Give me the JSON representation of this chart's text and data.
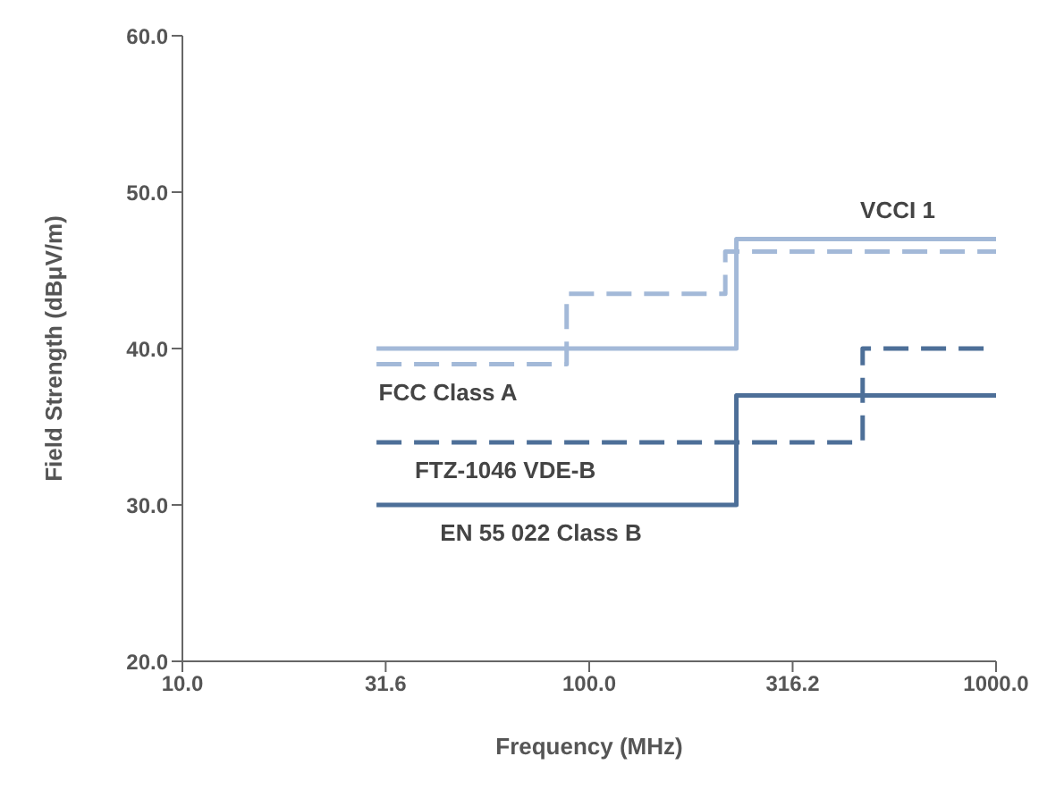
{
  "chart_data": {
    "type": "step",
    "xlabel": "Frequency (MHz)",
    "ylabel": "Field Strength (dBμV/m)",
    "log": "x",
    "marker": "none",
    "xlim": [
      10,
      1000
    ],
    "xticks": [
      {
        "value": 10,
        "label": "10.0"
      },
      {
        "value": 31.6,
        "label": "31.6"
      },
      {
        "value": 100,
        "label": "100.0"
      },
      {
        "value": 316.2,
        "label": "316.2"
      },
      {
        "value": 1000,
        "label": "1000.0"
      }
    ],
    "ylim": [
      20,
      60
    ],
    "yticks": [
      {
        "value": 20,
        "label": "20.0"
      },
      {
        "value": 30,
        "label": "30.0"
      },
      {
        "value": 40,
        "label": "40.0"
      },
      {
        "value": 50,
        "label": "50.0"
      },
      {
        "value": 60,
        "label": "60.0"
      }
    ],
    "series": [
      {
        "name": "VCCI 1",
        "color": "#a3b9d8",
        "line_style": "solid",
        "x": [
          30,
          230,
          1000
        ],
        "values": [
          40,
          47,
          47
        ]
      },
      {
        "name": "FCC Class A",
        "color": "#a3b9d8",
        "line_style": "dashed",
        "x": [
          30,
          88,
          216,
          1000
        ],
        "values": [
          39,
          43.5,
          46.2,
          46.2
        ]
      },
      {
        "name": "FTZ-1046 VDE-B",
        "color": "#4d6f98",
        "line_style": "dashed",
        "x": [
          30,
          230,
          470,
          1000
        ],
        "values": [
          34,
          34,
          40,
          40
        ]
      },
      {
        "name": "EN 55 022 Class B",
        "color": "#4d6f98",
        "line_style": "solid",
        "x": [
          30,
          230,
          1000
        ],
        "values": [
          30,
          37,
          37
        ]
      }
    ]
  }
}
